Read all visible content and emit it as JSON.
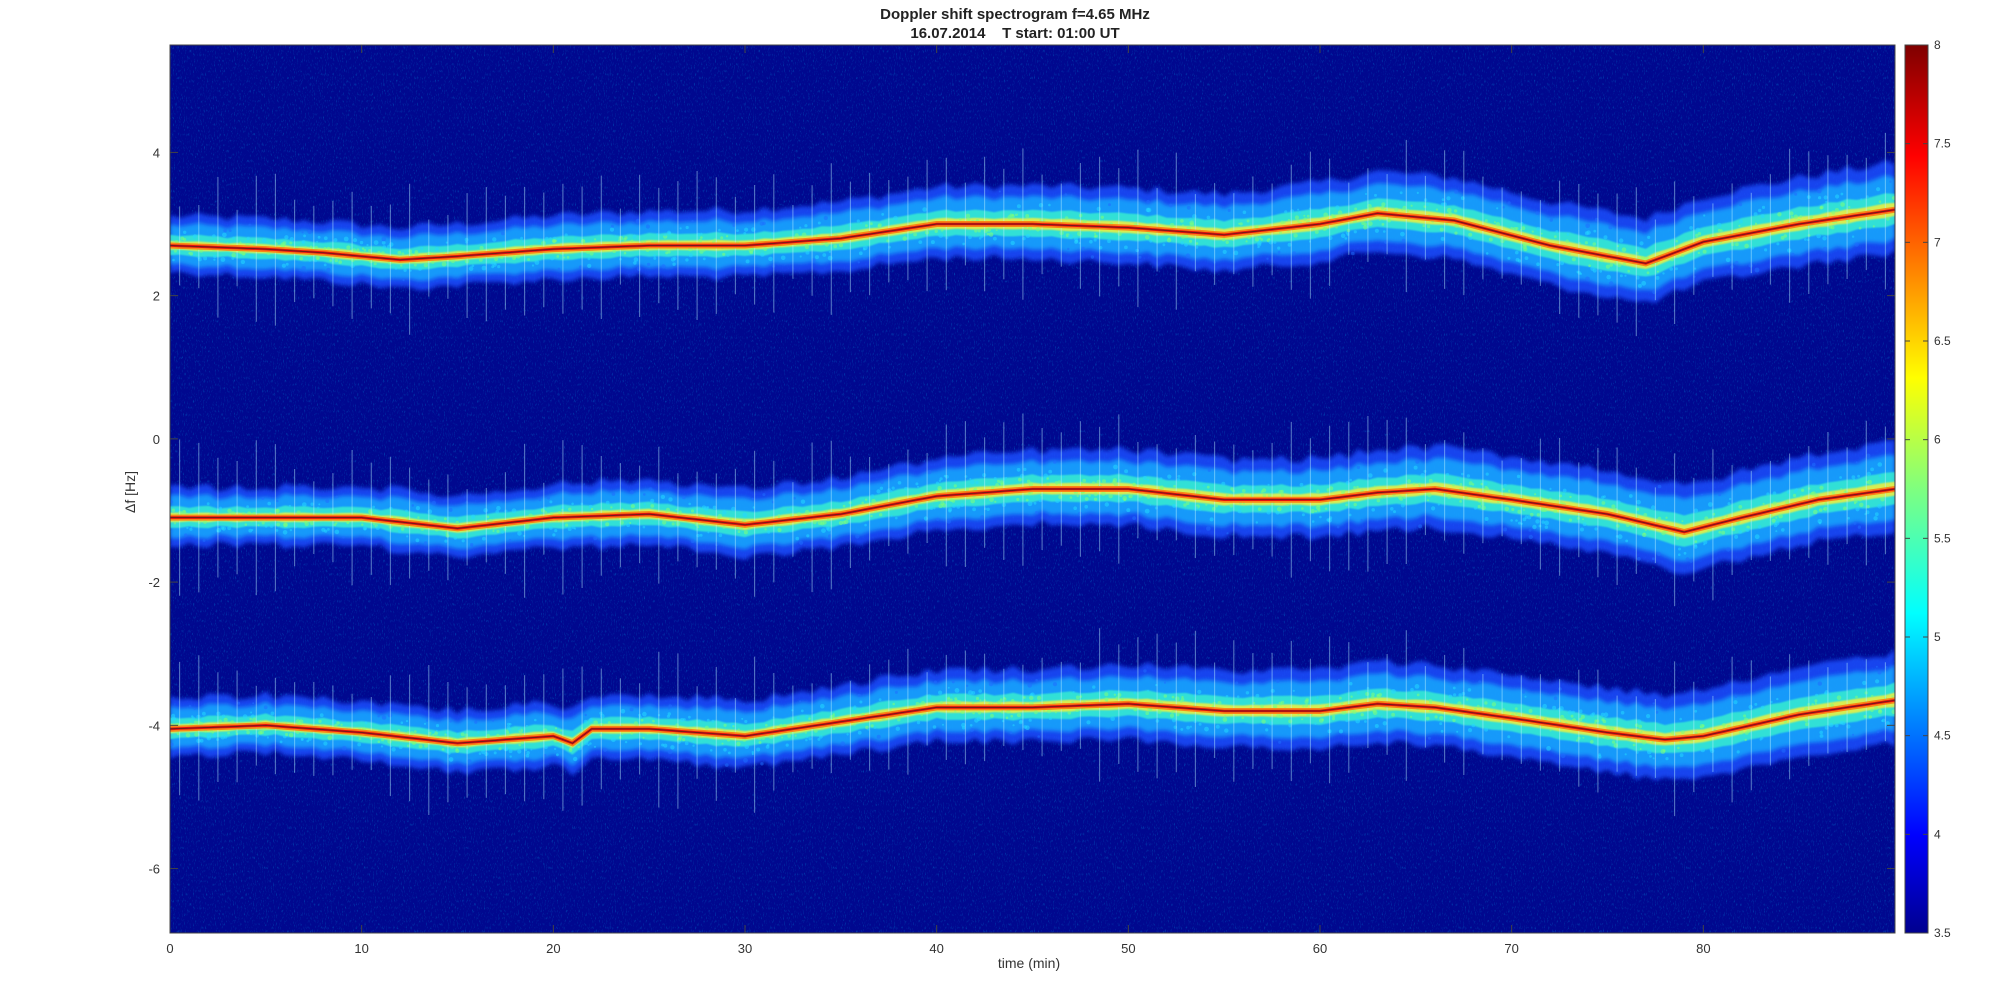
{
  "chart_data": {
    "type": "heatmap",
    "title": "Doppler shift spectrogram f=4.65 MHz",
    "subtitle": "16.07.2014    T start: 01:00 UT",
    "xlabel": "time (min)",
    "ylabel": "Δf [Hz]",
    "xlim": [
      0,
      90
    ],
    "ylim": [
      -6.9,
      5.5
    ],
    "xticks": [
      0,
      10,
      20,
      30,
      40,
      50,
      60,
      70,
      80
    ],
    "yticks": [
      -6,
      -4,
      -2,
      0,
      2,
      4
    ],
    "colorbar": {
      "colormap": "jet",
      "clim": [
        3.5,
        8
      ],
      "ticks": [
        3.5,
        4,
        4.5,
        5,
        5.5,
        6,
        6.5,
        7,
        7.5,
        8
      ]
    },
    "series": [
      {
        "x": [
          0,
          5,
          8,
          12,
          15,
          20,
          25,
          30,
          35,
          40,
          45,
          50,
          55,
          60,
          63,
          67,
          72,
          77,
          80,
          85,
          90
        ],
        "values": [
          2.7,
          2.65,
          2.6,
          2.5,
          2.55,
          2.65,
          2.7,
          2.7,
          2.8,
          3.0,
          3.0,
          2.95,
          2.85,
          3.0,
          3.15,
          3.05,
          2.7,
          2.45,
          2.75,
          3.0,
          3.2
        ]
      },
      {
        "x": [
          0,
          5,
          10,
          15,
          20,
          25,
          30,
          35,
          40,
          45,
          50,
          55,
          60,
          63,
          66,
          70,
          75,
          79,
          82,
          86,
          90
        ],
        "values": [
          -1.1,
          -1.1,
          -1.1,
          -1.25,
          -1.1,
          -1.05,
          -1.2,
          -1.05,
          -0.8,
          -0.7,
          -0.7,
          -0.85,
          -0.85,
          -0.75,
          -0.7,
          -0.85,
          -1.05,
          -1.3,
          -1.1,
          -0.85,
          -0.7
        ]
      },
      {
        "x": [
          0,
          5,
          10,
          15,
          20,
          21,
          22,
          25,
          30,
          35,
          40,
          45,
          50,
          55,
          60,
          63,
          66,
          70,
          75,
          78,
          80,
          85,
          90
        ],
        "values": [
          -4.05,
          -4.0,
          -4.1,
          -4.25,
          -4.15,
          -4.25,
          -4.05,
          -4.05,
          -4.15,
          -3.95,
          -3.75,
          -3.75,
          -3.7,
          -3.8,
          -3.8,
          -3.7,
          -3.75,
          -3.9,
          -4.1,
          -4.2,
          -4.15,
          -3.85,
          -3.65
        ]
      }
    ],
    "grid": false,
    "legend": "none"
  }
}
